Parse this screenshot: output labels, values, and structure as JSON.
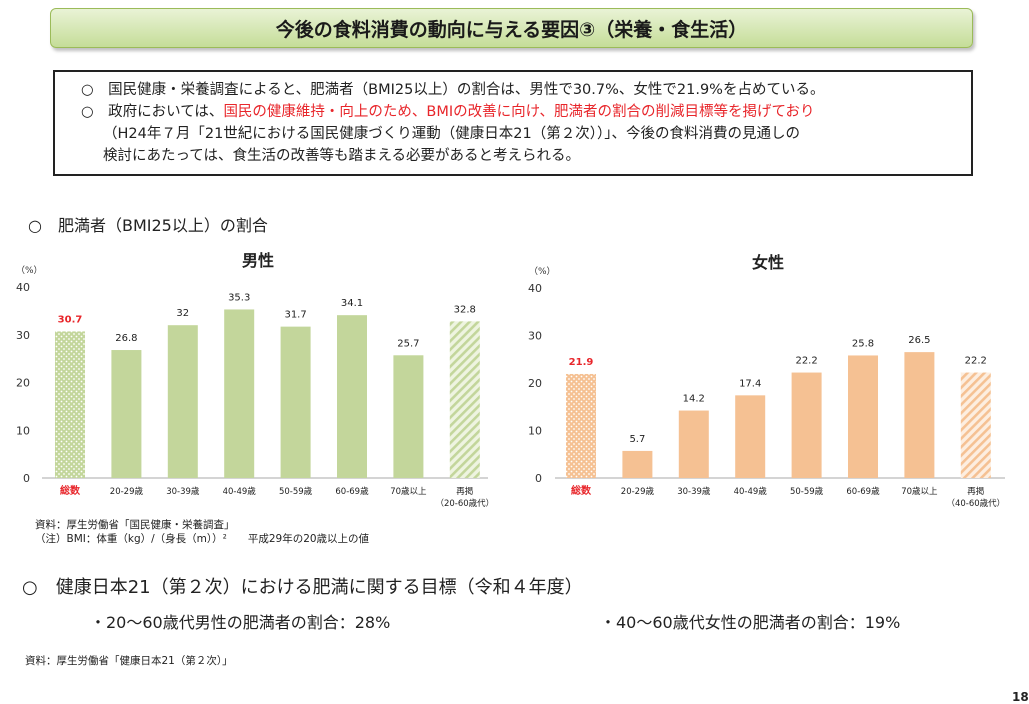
{
  "title": "今後の食料消費の動向に与える要因③（栄養・食生活）",
  "summary": {
    "line1": "○　国民健康・栄養調査によると、肥満者（BMI25以上）の割合は、男性で30.7%、女性で21.9%を占めている。",
    "line2_prefix": "○　政府においては、",
    "line2_red": "国民の健康維持・向上のため、BMIの改善に向け、肥満者の割合の削減目標等を掲げており",
    "line3": "（H24年７月「21世紀における国民健康づくり運動（健康日本21（第２次））」、今後の食料消費の見通しの",
    "line4": "検討にあたっては、食生活の改善等も踏まえる必要があると考えられる。"
  },
  "section1_heading": "○　肥満者（BMI25以上）の割合",
  "chart_data": [
    {
      "type": "bar",
      "title": "男性",
      "ylabel": "（%）",
      "ylim": [
        0,
        40
      ],
      "yticks": [
        0,
        10,
        20,
        30,
        40
      ],
      "categories": [
        "総数",
        "20-29歳",
        "30-39歳",
        "40-49歳",
        "50-59歳",
        "60-69歳",
        "70歳以上",
        "再掲"
      ],
      "category_sub": [
        "",
        "",
        "",
        "",
        "",
        "",
        "",
        "（20-60歳代）"
      ],
      "values": [
        30.7,
        26.8,
        32,
        35.3,
        31.7,
        34.1,
        25.7,
        32.8
      ],
      "colors": {
        "bar": "#c3d69b",
        "highlight_label": "#e8262b"
      }
    },
    {
      "type": "bar",
      "title": "女性",
      "ylabel": "（%）",
      "ylim": [
        0,
        40
      ],
      "yticks": [
        0,
        10,
        20,
        30,
        40
      ],
      "categories": [
        "総数",
        "20-29歳",
        "30-39歳",
        "40-49歳",
        "50-59歳",
        "60-69歳",
        "70歳以上",
        "再掲"
      ],
      "category_sub": [
        "",
        "",
        "",
        "",
        "",
        "",
        "",
        "（40-60歳代）"
      ],
      "values": [
        21.9,
        5.7,
        14.2,
        17.4,
        22.2,
        25.8,
        26.5,
        22.2
      ],
      "colors": {
        "bar": "#f5c193",
        "highlight_label": "#e8262b"
      }
    }
  ],
  "notes": {
    "source1": "資料：厚生労働省「国民健康・栄養調査」",
    "bmi_note": "（注）BMI：体重（kg）/（身長（m））²　　平成29年の20歳以上の値"
  },
  "section2_heading": "○　健康日本21（第２次）における肥満に関する目標（令和４年度）",
  "goals": {
    "male": "・20～60歳代男性の肥満者の割合：28%",
    "female": "・40～60歳代女性の肥満者の割合：19%"
  },
  "source2": "資料：厚生労働省「健康日本21（第２次）」",
  "page_number": "18"
}
